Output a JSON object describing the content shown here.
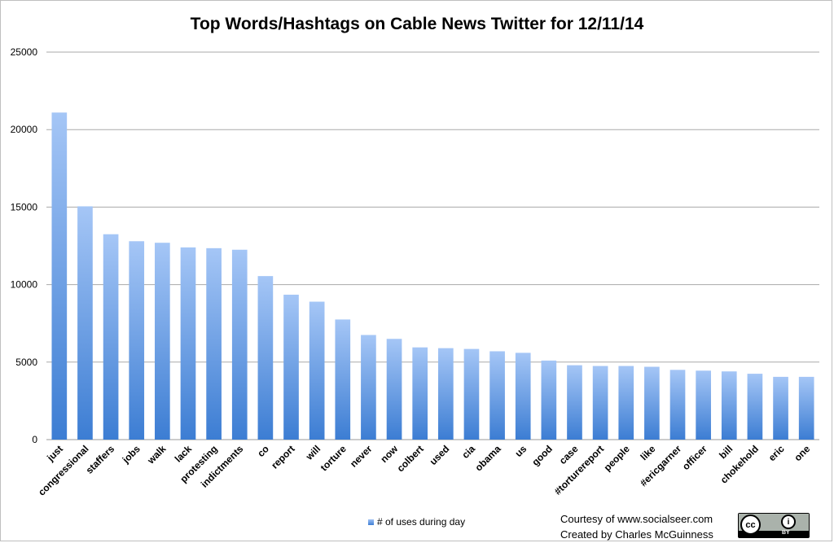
{
  "chart_data": {
    "type": "bar",
    "title": "Top Words/Hashtags on Cable News Twitter for 12/11/14",
    "categories": [
      "just",
      "congressional",
      "staffers",
      "jobs",
      "walk",
      "lack",
      "protesting",
      "indictments",
      "co",
      "report",
      "will",
      "torture",
      "never",
      "now",
      "colbert",
      "used",
      "cia",
      "obama",
      "us",
      "good",
      "case",
      "#torturereport",
      "people",
      "like",
      "#ericgarner",
      "officer",
      "bill",
      "chokehold",
      "eric",
      "one"
    ],
    "series": [
      {
        "name": "# of uses during day",
        "values": [
          21100,
          15050,
          13250,
          12800,
          12700,
          12400,
          12350,
          12250,
          10550,
          9350,
          8900,
          7750,
          6750,
          6500,
          5950,
          5900,
          5850,
          5700,
          5600,
          5100,
          4800,
          4750,
          4750,
          4700,
          4500,
          4450,
          4400,
          4250,
          4050,
          4050
        ]
      }
    ],
    "ylim": [
      0,
      25000
    ],
    "yticks": [
      "0",
      "5000",
      "10000",
      "15000",
      "20000",
      "25000"
    ],
    "grid": true,
    "legend_position": "bottom",
    "bar_colors": [
      "#a5c6f6",
      "#3c7dd3"
    ]
  },
  "credits": {
    "line1": "Courtesy of www.socialseer.com",
    "line2": "Created by Charles McGuinness"
  },
  "license_badge": {
    "cc": "cc",
    "by_symbol": "i",
    "by_label": "BY"
  }
}
